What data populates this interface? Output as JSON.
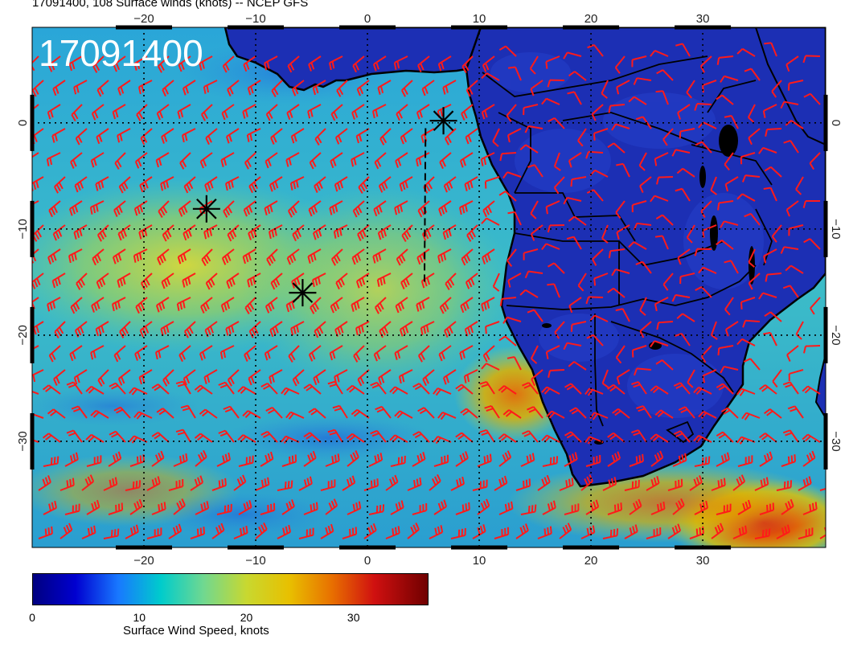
{
  "title": "17091400, 108 Surface winds (knots) -- NCEP GFS",
  "stamp": "17091400",
  "map": {
    "lon_range": [
      -30,
      41
    ],
    "lat_range": [
      -40,
      9
    ],
    "lon_ticks": [
      -20,
      -10,
      0,
      10,
      20,
      30
    ],
    "lat_ticks": [
      0,
      -10,
      -20,
      -30
    ],
    "lon_tick_labels": [
      "−20",
      "−10",
      "0",
      "10",
      "20",
      "30"
    ],
    "lat_tick_labels": [
      "0",
      "−10",
      "−20",
      "−30"
    ],
    "storm_markers": [
      {
        "lon": 6.8,
        "lat": 0.2
      },
      {
        "lon": -14.4,
        "lat": -8.1
      },
      {
        "lon": -5.8,
        "lat": -16.0
      }
    ],
    "track": [
      [
        5.2,
        -0.5
      ],
      [
        5.1,
        -15.0
      ]
    ],
    "colors": {
      "land_base": "#1c2fb4",
      "barb": "#ff1a1a",
      "coast": "#000000"
    }
  },
  "colorbar": {
    "label": "Surface Wind Speed, knots",
    "ticks": [
      "0",
      "10",
      "20",
      "30"
    ],
    "tick_values": [
      0,
      10,
      20,
      30
    ],
    "range": [
      0,
      37
    ],
    "stops": [
      {
        "v": 0,
        "c": "#000080"
      },
      {
        "v": 4,
        "c": "#0000d0"
      },
      {
        "v": 8,
        "c": "#1878ff"
      },
      {
        "v": 12,
        "c": "#00cccc"
      },
      {
        "v": 16,
        "c": "#70d890"
      },
      {
        "v": 20,
        "c": "#c8d830"
      },
      {
        "v": 24,
        "c": "#e8c000"
      },
      {
        "v": 28,
        "c": "#e87000"
      },
      {
        "v": 32,
        "c": "#d01010"
      },
      {
        "v": 37,
        "c": "#700000"
      }
    ]
  }
}
